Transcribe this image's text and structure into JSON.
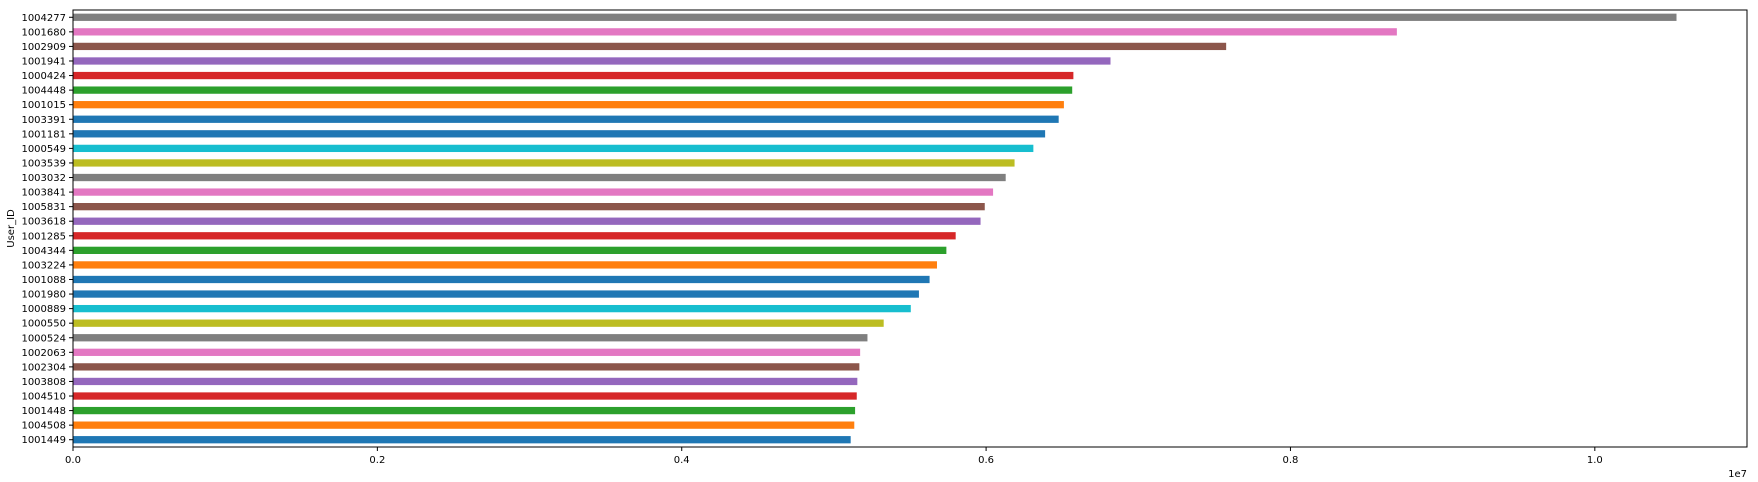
{
  "chart_data": {
    "type": "bar",
    "orientation": "horizontal",
    "title": "",
    "xlabel": "",
    "ylabel": "User_ID",
    "x_offset_text": "1e7",
    "xlim": [
      0,
      11000000.0
    ],
    "xticks": [
      0,
      2000000,
      4000000,
      6000000,
      8000000,
      10000000
    ],
    "xtick_labels": [
      "0.0",
      "0.2",
      "0.4",
      "0.6",
      "0.8",
      "1.0"
    ],
    "grid": false,
    "legend": false,
    "categories": [
      "1004277",
      "1001680",
      "1002909",
      "1001941",
      "1000424",
      "1004448",
      "1001015",
      "1003391",
      "1001181",
      "1000549",
      "1003539",
      "1003032",
      "1003841",
      "1005831",
      "1003618",
      "1001285",
      "1004344",
      "1003224",
      "1001088",
      "1001980",
      "1000889",
      "1000550",
      "1000524",
      "1002063",
      "1002304",
      "1003808",
      "1004510",
      "1001448",
      "1004508",
      "1001449"
    ],
    "values": [
      10536783,
      8699232,
      7577505,
      6817493,
      6573609,
      6565878,
      6511302,
      6476986,
      6387899,
      6310604,
      6187094,
      6128780,
      6045940,
      5991233,
      5963620,
      5800123,
      5739030,
      5677310,
      5628706,
      5558740,
      5505214,
      5327102,
      5220452,
      5172380,
      5167190,
      5153912,
      5150104,
      5139180,
      5133901,
      5110201
    ],
    "colors": [
      "#7f7f7f",
      "#e377c2",
      "#8c564b",
      "#9467bd",
      "#d62728",
      "#2ca02c",
      "#ff7f0e",
      "#1f77b4",
      "#1f77b4",
      "#17becf",
      "#bcbd22",
      "#7f7f7f",
      "#e377c2",
      "#8c564b",
      "#9467bd",
      "#d62728",
      "#2ca02c",
      "#ff7f0e",
      "#1f77b4",
      "#1f77b4",
      "#17becf",
      "#bcbd22",
      "#7f7f7f",
      "#e377c2",
      "#8c564b",
      "#9467bd",
      "#d62728",
      "#2ca02c",
      "#ff7f0e",
      "#1f77b4"
    ]
  }
}
